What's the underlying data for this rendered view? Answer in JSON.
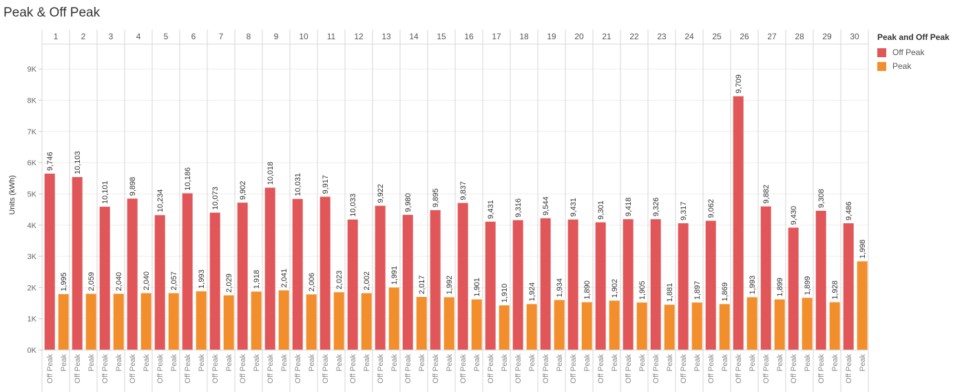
{
  "title": "Peak & Off Peak",
  "colors": {
    "off_peak": "#E15759",
    "peak": "#F28E2B"
  },
  "legend": {
    "title": "Peak and Off Peak",
    "items": [
      {
        "label": "Off Peak",
        "color": "#E15759"
      },
      {
        "label": "Peak",
        "color": "#F28E2B"
      }
    ]
  },
  "chart_data": {
    "type": "bar",
    "title": "Peak & Off Peak",
    "ylabel": "Units (kWh)",
    "xlabel": "",
    "ylim": [
      0,
      9800
    ],
    "yticks": [
      0,
      1000,
      2000,
      3000,
      4000,
      5000,
      6000,
      7000,
      8000,
      9000
    ],
    "ytick_labels": [
      "0K",
      "1K",
      "2K",
      "3K",
      "4K",
      "5K",
      "6K",
      "7K",
      "8K",
      "9K"
    ],
    "grid": true,
    "legend_position": "right",
    "categories": [
      "1",
      "2",
      "3",
      "4",
      "5",
      "6",
      "7",
      "8",
      "9",
      "10",
      "11",
      "12",
      "13",
      "14",
      "15",
      "16",
      "17",
      "18",
      "19",
      "20",
      "21",
      "22",
      "23",
      "24",
      "25",
      "26",
      "27",
      "28",
      "29",
      "30"
    ],
    "series": [
      {
        "name": "Off Peak",
        "values": [
          5650,
          5540,
          4590,
          4850,
          4320,
          5020,
          4400,
          4720,
          5200,
          4840,
          4910,
          4180,
          4620,
          4330,
          4480,
          4710,
          4110,
          4160,
          4220,
          4180,
          4090,
          4190,
          4190,
          4060,
          4140,
          8130,
          4600,
          3920,
          4460,
          4060
        ],
        "labels": [
          "9,746",
          "10,103",
          "10,101",
          "9,898",
          "10,234",
          "10,186",
          "10,073",
          "9,902",
          "10,018",
          "10,031",
          "9,917",
          "10,033",
          "9,922",
          "9,980",
          "9,895",
          "9,837",
          "9,431",
          "9,316",
          "9,544",
          "9,431",
          "9,301",
          "9,418",
          "9,326",
          "9,317",
          "9,062",
          "9,709",
          "9,882",
          "9,430",
          "9,308",
          "9,486"
        ]
      },
      {
        "name": "Peak",
        "values": [
          1790,
          1800,
          1800,
          1820,
          1820,
          1880,
          1750,
          1870,
          1910,
          1780,
          1850,
          1820,
          2000,
          1700,
          1690,
          1620,
          1430,
          1470,
          1600,
          1530,
          1580,
          1520,
          1450,
          1520,
          1470,
          1690,
          1620,
          1670,
          1530,
          2840
        ],
        "labels": [
          "1,995",
          "2,059",
          "2,040",
          "2,040",
          "2,057",
          "1,993",
          "2,029",
          "1,918",
          "2,041",
          "2,006",
          "2,023",
          "2,002",
          "1,991",
          "2,017",
          "1,992",
          "1,901",
          "1,910",
          "1,924",
          "1,934",
          "1,890",
          "1,902",
          "1,905",
          "1,881",
          "1,897",
          "1,869",
          "1,993",
          "1,899",
          "1,899",
          "1,928",
          "1,998"
        ]
      }
    ]
  }
}
